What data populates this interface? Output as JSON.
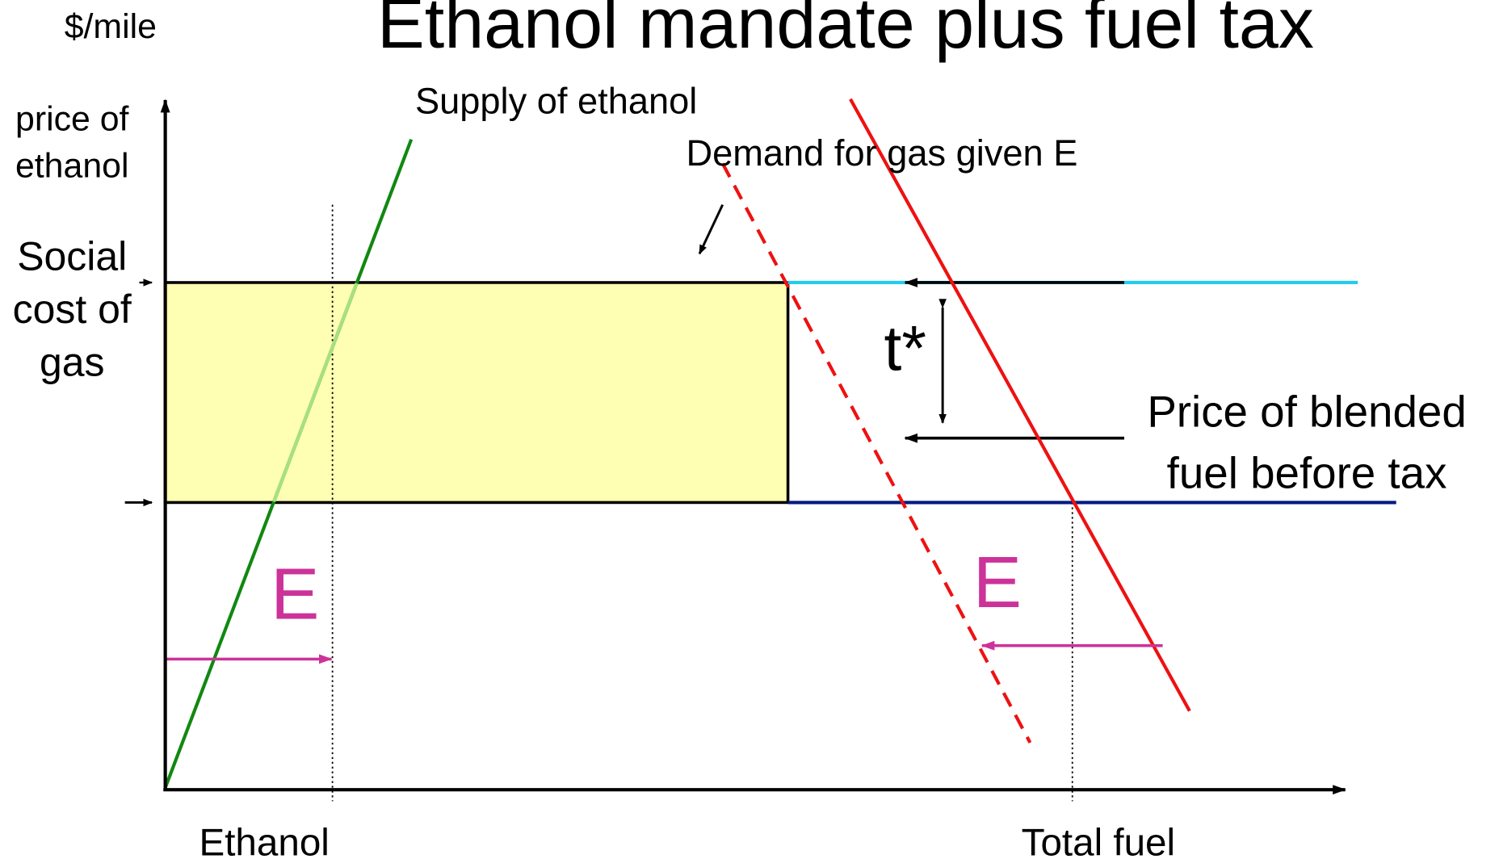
{
  "title": "Ethanol mandate plus fuel tax",
  "y_axis": {
    "unit": "$/mile",
    "label_lines": [
      "price of",
      "ethanol"
    ],
    "social_cost_lines": [
      "Social",
      "cost of",
      "gas"
    ]
  },
  "curves": {
    "supply": "Supply of ethanol",
    "demand": "Demand for gas given E",
    "tax": "t*",
    "price_lines": [
      "Price of blended",
      "fuel before tax"
    ],
    "shift_left": "E",
    "shift_right": "E"
  },
  "x_axis": {
    "left_label": "Ethanol",
    "right_label": "Total fuel"
  }
}
